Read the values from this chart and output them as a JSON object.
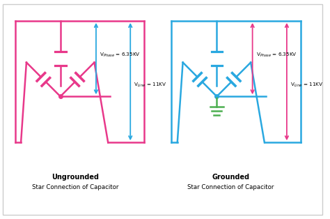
{
  "bg_color": "#ffffff",
  "pink": "#e8388a",
  "blue": "#29a8e0",
  "green": "#4CAF50",
  "label1_title": "Ungrounded",
  "label1_sub": "Star Connection of Capacitor",
  "label2_title": "Grounded",
  "label2_sub": "Star Connection of Capacitor",
  "vphase_text": "V$_{Phase}$ = 6.35KV",
  "vline_text": "V$_{Line}$ = 11KV",
  "outer_border_color": "#cccccc",
  "lw": 1.8
}
